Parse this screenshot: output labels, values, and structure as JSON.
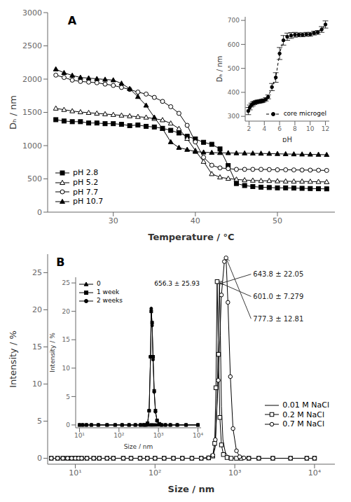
{
  "chart_data": [
    {
      "type": "line",
      "title": "A",
      "xlabel": "Temperature / °C",
      "ylabel": "Dₕ / nm",
      "xlim": [
        22,
        57
      ],
      "xticks": [
        30,
        40,
        50
      ],
      "ylim": [
        0,
        3000
      ],
      "yticks": [
        0,
        500,
        1000,
        1500,
        2000,
        2500,
        3000
      ],
      "legend": "lower left",
      "series": [
        {
          "name": "pH 2.8",
          "color": "black",
          "marker": "filled square",
          "line_style": "solid",
          "x": [
            23,
            24,
            25,
            26,
            27,
            28,
            29,
            30,
            31,
            32,
            33,
            34,
            35,
            36,
            37,
            38,
            39,
            40,
            41,
            42,
            43,
            44,
            45,
            46,
            47,
            48,
            49,
            50,
            51,
            52,
            53,
            54,
            55,
            56
          ],
          "values": [
            1390,
            1370,
            1360,
            1360,
            1340,
            1340,
            1330,
            1330,
            1320,
            1300,
            1310,
            1290,
            1280,
            1260,
            1230,
            1190,
            1140,
            1100,
            1050,
            1020,
            950,
            700,
            430,
            400,
            385,
            375,
            370,
            365,
            365,
            362,
            358,
            355,
            352,
            350
          ]
        },
        {
          "name": "pH 5.2",
          "color": "black",
          "marker": "open triangle",
          "line_style": "solid",
          "x": [
            23,
            24,
            25,
            26,
            27,
            28,
            29,
            30,
            31,
            32,
            33,
            34,
            35,
            36,
            37,
            38,
            39,
            40,
            41,
            42,
            43,
            44,
            45,
            46,
            47,
            48,
            49,
            50,
            51,
            52,
            53,
            54,
            55,
            56
          ],
          "values": [
            1560,
            1540,
            1520,
            1505,
            1495,
            1485,
            1475,
            1465,
            1455,
            1445,
            1435,
            1425,
            1405,
            1385,
            1335,
            1255,
            1105,
            925,
            760,
            575,
            525,
            505,
            492,
            482,
            477,
            472,
            472,
            467,
            464,
            462,
            462,
            460,
            457,
            454
          ]
        },
        {
          "name": "pH 7.7",
          "color": "black",
          "marker": "open circle",
          "line_style": "solid",
          "x": [
            23,
            24,
            25,
            26,
            27,
            28,
            29,
            30,
            31,
            32,
            33,
            34,
            35,
            36,
            37,
            38,
            39,
            40,
            41,
            42,
            43,
            44,
            45,
            46,
            47,
            48,
            49,
            50,
            51,
            52,
            53,
            54,
            55,
            56
          ],
          "values": [
            2060,
            2025,
            1985,
            1965,
            1955,
            1945,
            1925,
            1905,
            1875,
            1845,
            1805,
            1775,
            1725,
            1665,
            1585,
            1485,
            1305,
            1055,
            825,
            705,
            665,
            655,
            643,
            643,
            643,
            643,
            640,
            637,
            637,
            635,
            633,
            632,
            630,
            627
          ]
        },
        {
          "name": "pH 10.7",
          "color": "black",
          "marker": "filled triangle",
          "line_style": "solid",
          "x": [
            23,
            24,
            25,
            26,
            27,
            28,
            29,
            30,
            31,
            32,
            33,
            34,
            35,
            36,
            37,
            38,
            39,
            40,
            41,
            42,
            43,
            44,
            45,
            46,
            47,
            48,
            49,
            50,
            51,
            52,
            53,
            54,
            55,
            56
          ],
          "values": [
            2150,
            2095,
            2055,
            2025,
            2015,
            2005,
            1995,
            1985,
            1935,
            1855,
            1735,
            1605,
            1425,
            1255,
            1055,
            970,
            940,
            910,
            900,
            895,
            892,
            890,
            888,
            886,
            884,
            882,
            880,
            877,
            874,
            872,
            870,
            868,
            866,
            863
          ]
        }
      ]
    },
    {
      "type": "line",
      "xlabel": "pH",
      "ylabel": "Dₕ / nm",
      "xlim": [
        1.5,
        12.5
      ],
      "xticks": [
        2,
        4,
        6,
        8,
        10,
        12
      ],
      "ylim": [
        280,
        715
      ],
      "yticks": [
        300,
        400,
        500,
        600,
        700
      ],
      "legend": "lower right",
      "series": [
        {
          "name": "core microgel",
          "color": "black",
          "marker": "filled circle",
          "line_style": "dashed",
          "x": [
            1.9,
            2.1,
            2.3,
            2.5,
            2.7,
            2.9,
            3.1,
            3.3,
            3.5,
            3.7,
            3.9,
            4.2,
            4.5,
            5.0,
            5.5,
            6.0,
            6.5,
            7.0,
            7.5,
            8.0,
            8.5,
            9.0,
            9.5,
            10.0,
            10.5,
            11.0,
            11.5,
            12.0
          ],
          "values": [
            322,
            337,
            347,
            352,
            356,
            359,
            361,
            361,
            363,
            364,
            366,
            371,
            381,
            422,
            462,
            562,
            617,
            632,
            637,
            640,
            640,
            640,
            642,
            642,
            647,
            650,
            662,
            683
          ],
          "yerr": [
            15,
            10,
            8,
            8,
            7,
            7,
            7,
            7,
            7,
            7,
            7,
            7,
            8,
            15,
            20,
            25,
            20,
            15,
            12,
            10,
            8,
            8,
            8,
            8,
            8,
            8,
            12,
            15
          ]
        }
      ]
    },
    {
      "type": "line",
      "title": "B",
      "xlabel": "Size / nm",
      "ylabel": "Intensity / %",
      "log": "x",
      "xlim": [
        4.5,
        18000
      ],
      "xticks": [
        {
          "value": 10,
          "label": "10¹"
        },
        {
          "value": 100,
          "label": "10²"
        },
        {
          "value": 1000,
          "label": "10³"
        },
        {
          "value": 10000,
          "label": "10⁴"
        }
      ],
      "ylim": [
        -0.8,
        27.5
      ],
      "yticks": [
        0,
        5,
        10,
        15,
        20,
        25
      ],
      "legend": "lower right",
      "series": [
        {
          "name": "0.01 M NaCl",
          "color": "black",
          "marker": "none",
          "line_style": "solid",
          "x": [
            5,
            6,
            7,
            8,
            9,
            10,
            11,
            12,
            14,
            17,
            20,
            25,
            30,
            40,
            50,
            65,
            80,
            100,
            130,
            170,
            220,
            290,
            380,
            470,
            530,
            570,
            600,
            620,
            643,
            660,
            680,
            710,
            760,
            830,
            920,
            1050,
            1200,
            1500,
            2000,
            3000,
            5000,
            8000,
            10000
          ],
          "values": [
            0,
            0,
            0,
            0,
            0,
            0,
            0,
            0,
            0,
            0,
            0,
            0,
            0,
            0,
            0,
            0,
            0,
            0,
            0,
            0,
            0,
            0,
            0,
            0.05,
            0.2,
            1.5,
            8.0,
            16.0,
            23.5,
            16.5,
            7.0,
            2.5,
            0.8,
            0.2,
            0.05,
            0,
            0,
            0,
            0,
            0,
            0,
            0,
            0
          ]
        },
        {
          "name": "0.2 M NaCl",
          "color": "black",
          "marker": "open square",
          "line_style": "solid",
          "x": [
            5,
            6,
            7,
            8,
            9,
            10,
            11,
            12,
            14,
            17,
            20,
            25,
            30,
            40,
            50,
            65,
            80,
            100,
            130,
            170,
            220,
            290,
            380,
            470,
            530,
            560,
            580,
            601,
            625,
            650,
            680,
            720,
            800,
            900,
            1050,
            1200,
            1500,
            2000,
            3000,
            5000,
            8000,
            10000
          ],
          "values": [
            0,
            0,
            0,
            0,
            0,
            0,
            0,
            0,
            0,
            0,
            0,
            0,
            0,
            0,
            0,
            0,
            0,
            0,
            0,
            0,
            0,
            0,
            0,
            0.05,
            0.3,
            2.0,
            9.5,
            23.8,
            14.0,
            5.5,
            1.8,
            0.5,
            0.1,
            0,
            0,
            0,
            0,
            0,
            0,
            0,
            0,
            0
          ]
        },
        {
          "name": "0.7 M NaCl",
          "color": "black",
          "marker": "open circle",
          "line_style": "solid",
          "x": [
            5,
            6,
            7,
            8,
            9,
            10,
            11,
            12,
            14,
            17,
            20,
            25,
            30,
            40,
            50,
            65,
            80,
            100,
            130,
            170,
            220,
            290,
            380,
            470,
            530,
            570,
            620,
            680,
            740,
            777,
            820,
            880,
            950,
            1050,
            1150,
            1300,
            1500,
            2000,
            3000,
            5000,
            8000,
            10000
          ],
          "values": [
            0,
            0,
            0,
            0,
            0,
            0,
            0,
            0,
            0,
            0,
            0,
            0,
            0,
            0,
            0,
            0,
            0,
            0,
            0,
            0,
            0,
            0,
            0,
            0.05,
            0.4,
            2.5,
            10.5,
            22.0,
            26.5,
            27.0,
            21.0,
            11.0,
            4.0,
            1.0,
            0.2,
            0.05,
            0,
            0,
            0,
            0,
            0,
            0
          ]
        }
      ],
      "annotations": [
        {
          "text": "643.8 ± 22.05",
          "xy": [
            643,
            23.5
          ],
          "xytext": [
            1600,
            24.8
          ]
        },
        {
          "text": "601.0 ± 7.279",
          "xy": [
            601,
            23.8
          ],
          "xytext": [
            1600,
            21.8
          ]
        },
        {
          "text": "777.3 ± 12.81",
          "xy": [
            777,
            27.0
          ],
          "xytext": [
            1600,
            18.8
          ]
        }
      ]
    },
    {
      "type": "line",
      "xlabel": "Size / nm",
      "ylabel": "Intensity / %",
      "log": "x",
      "xlim": [
        8,
        12000
      ],
      "xticks": [
        {
          "value": 10,
          "label": "10¹"
        },
        {
          "value": 100,
          "label": "10²"
        },
        {
          "value": 1000,
          "label": "10³"
        },
        {
          "value": 10000,
          "label": "10⁴"
        }
      ],
      "ylim": [
        -0.5,
        26
      ],
      "yticks": [
        0,
        5,
        10,
        15,
        20,
        25
      ],
      "legend": "upper left",
      "annotations": [
        {
          "text": "656.3 ± 25.93"
        }
      ],
      "series": [
        {
          "name": "0",
          "color": "black",
          "marker": "filled triangle",
          "line_style": "solid",
          "x": [
            10,
            12,
            15,
            20,
            30,
            50,
            80,
            120,
            180,
            260,
            350,
            420,
            480,
            530,
            580,
            630,
            656,
            690,
            730,
            780,
            840,
            920,
            1050,
            1200,
            1500,
            2000,
            3000,
            5000,
            10000
          ],
          "values": [
            0,
            0,
            0,
            0,
            0,
            0,
            0,
            0,
            0,
            0,
            0,
            0,
            0,
            0,
            0,
            0,
            0,
            0,
            0,
            0,
            0,
            0,
            0,
            0,
            0,
            0,
            0,
            0,
            0
          ]
        },
        {
          "name": "1 week",
          "color": "black",
          "marker": "filled square",
          "line_style": "solid",
          "x": [
            10,
            12,
            15,
            20,
            30,
            50,
            80,
            120,
            180,
            260,
            350,
            420,
            480,
            530,
            580,
            630,
            656,
            690,
            730,
            780,
            840,
            920,
            1050,
            1200,
            1500,
            2000,
            3000,
            5000,
            10000
          ],
          "values": [
            0,
            0,
            0,
            0,
            0,
            0,
            0,
            0,
            0,
            0,
            0,
            0,
            0,
            0.3,
            2.5,
            12.0,
            20.0,
            18.0,
            12.0,
            6.0,
            2.5,
            0.8,
            0.2,
            0,
            0,
            0,
            0,
            0,
            0
          ]
        },
        {
          "name": "2 weeks",
          "color": "black",
          "marker": "filled circle",
          "line_style": "solid",
          "x": [
            10,
            12,
            15,
            20,
            30,
            50,
            80,
            120,
            180,
            260,
            350,
            420,
            480,
            530,
            580,
            630,
            656,
            690,
            730,
            780,
            840,
            920,
            1050,
            1200,
            1500,
            2000,
            3000,
            5000,
            10000
          ],
          "values": [
            0,
            0,
            0,
            0,
            0,
            0,
            0,
            0,
            0,
            0,
            0,
            0,
            0,
            0.3,
            2.5,
            12.0,
            20.5,
            17.5,
            11.5,
            5.8,
            2.3,
            0.7,
            0.1,
            0,
            0,
            0,
            0,
            0,
            0
          ]
        }
      ]
    }
  ]
}
